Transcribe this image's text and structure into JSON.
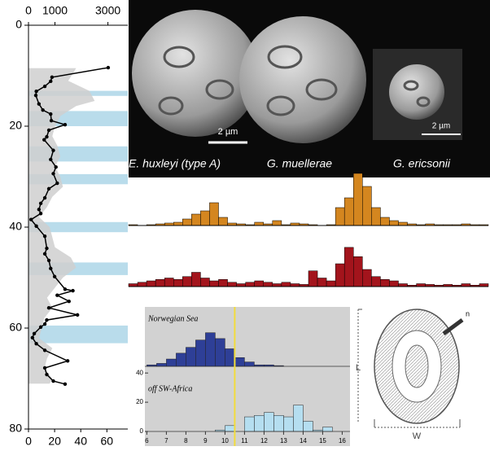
{
  "chart_data": [
    {
      "type": "profile",
      "ylim": [
        0,
        80
      ],
      "yticks": [
        0,
        20,
        40,
        60,
        80
      ],
      "xlim": [
        0,
        76
      ],
      "xticks": [
        0,
        20,
        40,
        60
      ],
      "x2lim": [
        0,
        3750
      ],
      "x2ticks": [
        0,
        1000,
        3000
      ],
      "bands": [
        [
          13,
          14
        ],
        [
          17,
          20
        ],
        [
          24,
          27
        ],
        [
          29.5,
          31.5
        ],
        [
          39,
          41
        ],
        [
          47,
          49.5
        ],
        [
          59.5,
          63
        ]
      ],
      "band_color": "#b9dceb",
      "series": [
        {
          "kind": "area",
          "axis": "x2",
          "color": "#cfcfcf",
          "y": [
            8.5,
            11,
            13,
            15,
            16,
            18,
            20,
            22,
            24,
            26,
            28,
            30,
            32,
            34,
            36,
            38,
            40,
            42,
            44,
            46,
            48,
            50,
            52,
            54,
            56,
            58,
            60,
            62,
            64,
            66,
            68,
            70,
            71
          ],
          "values": [
            1800,
            1500,
            2300,
            2500,
            1800,
            1200,
            1000,
            900,
            1100,
            1200,
            1000,
            1200,
            1300,
            900,
            700,
            400,
            800,
            900,
            1000,
            1600,
            1800,
            1300,
            1000,
            700,
            900,
            600,
            500,
            400,
            900,
            700,
            600,
            900,
            800
          ]
        },
        {
          "kind": "line",
          "color": "#000000",
          "y": [
            8.4,
            10.3,
            11.1,
            12.1,
            13.1,
            13.9,
            15.6,
            16.8,
            17.6,
            18.9,
            19.7,
            20.8,
            22.1,
            22.7,
            24.8,
            26.6,
            28.1,
            29.4,
            31.3,
            32.4,
            34.2,
            35.3,
            36.5,
            37.3,
            38.5,
            39.8,
            41.8,
            44.2,
            45.3,
            46.6,
            48.2,
            49.8,
            52.3,
            52.6,
            53.5,
            54.7,
            56,
            57.4,
            58.4,
            59.2,
            59.8,
            61.1,
            61.9,
            63.1,
            64.4,
            66.5,
            67.9,
            69.2,
            70.5,
            71.1
          ],
          "values": [
            61,
            18,
            17,
            12.5,
            6,
            5.6,
            8,
            11,
            17,
            17.5,
            28,
            15.6,
            14,
            12,
            19,
            17,
            21,
            19,
            22,
            15.6,
            12.5,
            9.4,
            8,
            9.4,
            2,
            6,
            12.5,
            14,
            12.5,
            15.6,
            17,
            20,
            28,
            34,
            22,
            31,
            15.6,
            37.5,
            14,
            12.5,
            9.4,
            4.4,
            3,
            6,
            12.5,
            30,
            12.5,
            14,
            19,
            28
          ]
        }
      ]
    },
    {
      "type": "bar",
      "color": "#d4861f",
      "ylim": [
        0,
        64
      ],
      "values": [
        1,
        0,
        1,
        2,
        3,
        4,
        8,
        14,
        18,
        28,
        10,
        3,
        2,
        1,
        4,
        2,
        6,
        1,
        3,
        2,
        1,
        0,
        1,
        22,
        34,
        64,
        48,
        22,
        10,
        6,
        4,
        2,
        1,
        2,
        1,
        1,
        1,
        2,
        1,
        1
      ]
    },
    {
      "type": "bar",
      "color": "#a3141c",
      "ylim": [
        0,
        64
      ],
      "values": [
        4,
        6,
        8,
        10,
        12,
        10,
        14,
        20,
        12,
        8,
        10,
        6,
        4,
        6,
        8,
        6,
        4,
        6,
        4,
        3,
        22,
        12,
        8,
        32,
        55,
        42,
        24,
        14,
        10,
        8,
        4,
        2,
        4,
        3,
        2,
        3,
        2,
        4,
        2,
        4
      ]
    },
    {
      "type": "histogram",
      "xlim": [
        5.9,
        16.4
      ],
      "xticks": [
        6,
        7,
        8,
        9,
        10,
        11,
        12,
        13,
        14,
        15,
        16
      ],
      "ylim": [
        0,
        44
      ],
      "yticks": [
        0,
        20,
        40
      ],
      "threshold": 10.5,
      "threshold_color": "#f2dc3c",
      "series": [
        {
          "name": "Norwegian Sea",
          "color": "#2e3f97",
          "bins": [
            6,
            6.5,
            7,
            7.5,
            8,
            8.5,
            9,
            9.5,
            10,
            10.5,
            11,
            11.5,
            12,
            12.5,
            13
          ],
          "values": [
            1,
            2,
            5,
            9,
            13,
            18,
            23,
            19,
            12,
            6,
            3,
            1,
            1,
            0.5
          ]
        },
        {
          "name": "off SW-Africa",
          "color": "#b5def0",
          "bins": [
            9.5,
            10,
            10.5,
            11,
            11.5,
            12,
            12.5,
            13,
            13.5,
            14,
            14.5,
            15,
            15.5
          ],
          "values": [
            1,
            4,
            0,
            10,
            11,
            13,
            11,
            10,
            18,
            7,
            1,
            3
          ]
        }
      ]
    }
  ],
  "image": {
    "labels": [
      "E. huxleyi (type A)",
      "G. muellerae",
      "G. ericsonii"
    ],
    "scale_bars": [
      "2 µm",
      "2 µm"
    ]
  },
  "diagram": {
    "labels": [
      "n",
      "L",
      "W"
    ]
  }
}
